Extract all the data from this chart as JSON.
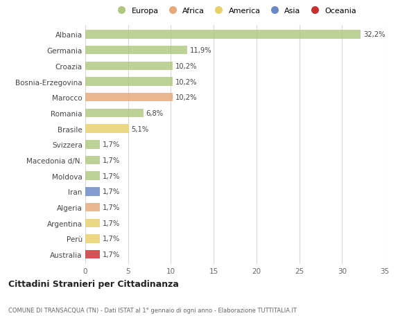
{
  "countries": [
    "Albania",
    "Germania",
    "Croazia",
    "Bosnia-Erzegovina",
    "Marocco",
    "Romania",
    "Brasile",
    "Svizzera",
    "Macedonia d/N.",
    "Moldova",
    "Iran",
    "Algeria",
    "Argentina",
    "Perù",
    "Australia"
  ],
  "values": [
    32.2,
    11.9,
    10.2,
    10.2,
    10.2,
    6.8,
    5.1,
    1.7,
    1.7,
    1.7,
    1.7,
    1.7,
    1.7,
    1.7,
    1.7
  ],
  "labels": [
    "32,2%",
    "11,9%",
    "10,2%",
    "10,2%",
    "10,2%",
    "6,8%",
    "5,1%",
    "1,7%",
    "1,7%",
    "1,7%",
    "1,7%",
    "1,7%",
    "1,7%",
    "1,7%",
    "1,7%"
  ],
  "colors": [
    "#aec880",
    "#aec880",
    "#aec880",
    "#aec880",
    "#e8a878",
    "#aec880",
    "#e8d068",
    "#aec880",
    "#aec880",
    "#aec880",
    "#6888c8",
    "#e8a878",
    "#e8d068",
    "#e8d068",
    "#c83030"
  ],
  "legend_labels": [
    "Europa",
    "Africa",
    "America",
    "Asia",
    "Oceania"
  ],
  "legend_colors": [
    "#aec880",
    "#e8a878",
    "#e8d068",
    "#6888c8",
    "#c83030"
  ],
  "title": "Cittadini Stranieri per Cittadinanza",
  "subtitle": "COMUNE DI TRANSACQUA (TN) - Dati ISTAT al 1° gennaio di ogni anno - Elaborazione TUTTITALIA.IT",
  "xlim": [
    0,
    35
  ],
  "xticks": [
    0,
    5,
    10,
    15,
    20,
    25,
    30,
    35
  ],
  "bg_color": "#ffffff",
  "grid_color": "#d8d8d8",
  "bar_height": 0.55
}
